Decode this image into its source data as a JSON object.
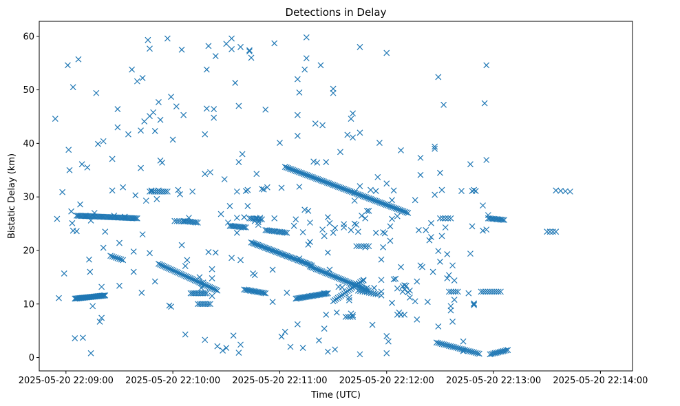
{
  "chart_data": {
    "type": "scatter",
    "title": "Detections in Delay",
    "xlabel": "Time (UTC)",
    "ylabel": "Bistatic Delay (km)",
    "xlim": [
      -15,
      318
    ],
    "ylim": [
      -2.5,
      62.8
    ],
    "marker": "x",
    "color": "#1f77b4",
    "x_ticks": [
      {
        "value": 0,
        "label": "2025-05-20 22:09:00"
      },
      {
        "value": 60,
        "label": "2025-05-20 22:10:00"
      },
      {
        "value": 120,
        "label": "2025-05-20 22:11:00"
      },
      {
        "value": 180,
        "label": "2025-05-20 22:12:00"
      },
      {
        "value": 240,
        "label": "2025-05-20 22:13:00"
      },
      {
        "value": 300,
        "label": "2025-05-20 22:14:00"
      }
    ],
    "y_ticks": [
      0,
      10,
      20,
      30,
      40,
      50,
      60
    ],
    "x_unit_note": "x values are seconds after 2025-05-20 22:09:00 UTC",
    "tracks": [
      {
        "x0": 5,
        "y0": 11.0,
        "x1": 22,
        "y1": 11.6,
        "count": 30
      },
      {
        "x0": 6,
        "y0": 26.5,
        "x1": 40,
        "y1": 26.0,
        "count": 45
      },
      {
        "x0": 25,
        "y0": 19.0,
        "x1": 32,
        "y1": 18.2,
        "count": 8
      },
      {
        "x0": 47,
        "y0": 31.0,
        "x1": 57,
        "y1": 31.0,
        "count": 10
      },
      {
        "x0": 52,
        "y0": 17.5,
        "x1": 85,
        "y1": 12.5,
        "count": 40
      },
      {
        "x0": 70,
        "y0": 12.0,
        "x1": 79,
        "y1": 12.0,
        "count": 10
      },
      {
        "x0": 66,
        "y0": 25.5,
        "x1": 74,
        "y1": 25.2,
        "count": 10
      },
      {
        "x0": 74,
        "y0": 10.0,
        "x1": 81,
        "y1": 10.0,
        "count": 8
      },
      {
        "x0": 92,
        "y0": 24.6,
        "x1": 101,
        "y1": 24.3,
        "count": 12
      },
      {
        "x0": 100,
        "y0": 12.7,
        "x1": 112,
        "y1": 12.0,
        "count": 16
      },
      {
        "x0": 103,
        "y0": 26.0,
        "x1": 110,
        "y1": 25.8,
        "count": 8
      },
      {
        "x0": 104,
        "y0": 21.5,
        "x1": 138,
        "y1": 17.2,
        "count": 45
      },
      {
        "x0": 112,
        "y0": 23.8,
        "x1": 124,
        "y1": 23.3,
        "count": 14
      },
      {
        "x0": 123,
        "y0": 35.6,
        "x1": 192,
        "y1": 27.0,
        "count": 80
      },
      {
        "x0": 129,
        "y0": 11.0,
        "x1": 147,
        "y1": 12.0,
        "count": 25
      },
      {
        "x0": 137,
        "y0": 17.0,
        "x1": 170,
        "y1": 12.5,
        "count": 40
      },
      {
        "x0": 150,
        "y0": 10.5,
        "x1": 167,
        "y1": 14.5,
        "count": 20
      },
      {
        "x0": 164,
        "y0": 12.5,
        "x1": 175,
        "y1": 11.8,
        "count": 10
      },
      {
        "x0": 163,
        "y0": 20.8,
        "x1": 170,
        "y1": 20.8,
        "count": 6
      },
      {
        "x0": 208,
        "y0": 2.8,
        "x1": 232,
        "y1": 0.7,
        "count": 25
      },
      {
        "x0": 238,
        "y0": 0.6,
        "x1": 248,
        "y1": 1.4,
        "count": 12
      },
      {
        "x0": 237,
        "y0": 26.0,
        "x1": 246,
        "y1": 25.7,
        "count": 12
      },
      {
        "x0": 233,
        "y0": 12.3,
        "x1": 244,
        "y1": 12.3,
        "count": 10
      },
      {
        "x0": 215,
        "y0": 12.3,
        "x1": 220,
        "y1": 12.3,
        "count": 5
      },
      {
        "x0": 270,
        "y0": 23.5,
        "x1": 275,
        "y1": 23.5,
        "count": 4
      },
      {
        "x0": 275,
        "y0": 31.2,
        "x1": 283,
        "y1": 31.0,
        "count": 4
      },
      {
        "x0": 210,
        "y0": 26.0,
        "x1": 216,
        "y1": 26.0,
        "count": 5
      },
      {
        "x0": 157,
        "y0": 7.6,
        "x1": 161,
        "y1": 7.6,
        "count": 4
      },
      {
        "x0": 186,
        "y0": 8.0,
        "x1": 190,
        "y1": 8.0,
        "count": 3
      },
      {
        "x0": 61,
        "y0": 25.5,
        "x1": 66,
        "y1": 25.4,
        "count": 5
      }
    ],
    "points": [
      [
        -6,
        44.6
      ],
      [
        -5,
        25.9
      ],
      [
        -4,
        11.1
      ],
      [
        -2,
        30.9
      ],
      [
        -1,
        15.7
      ],
      [
        1,
        54.6
      ],
      [
        1.5,
        38.8
      ],
      [
        2,
        35
      ],
      [
        3,
        27.3
      ],
      [
        3.5,
        25.1
      ],
      [
        4,
        50.5
      ],
      [
        4,
        23.7
      ],
      [
        5,
        3.6
      ],
      [
        6,
        23.6
      ],
      [
        7,
        55.7
      ],
      [
        8,
        28.6
      ],
      [
        9,
        36.1
      ],
      [
        9.5,
        3.7
      ],
      [
        11,
        26.5
      ],
      [
        12,
        35.5
      ],
      [
        13,
        18.3
      ],
      [
        13.5,
        16
      ],
      [
        14,
        25.6
      ],
      [
        14,
        0.8
      ],
      [
        15,
        9.6
      ],
      [
        16,
        27
      ],
      [
        17,
        49.4
      ],
      [
        18,
        39.9
      ],
      [
        19,
        6.7
      ],
      [
        20,
        13.2
      ],
      [
        20,
        7.4
      ],
      [
        21,
        40.4
      ],
      [
        21,
        20.5
      ],
      [
        22,
        23.5
      ],
      [
        26,
        37.1
      ],
      [
        26,
        31.2
      ],
      [
        27,
        26.5
      ],
      [
        29,
        46.4
      ],
      [
        29,
        43
      ],
      [
        30,
        21.4
      ],
      [
        30,
        13.4
      ],
      [
        32,
        31.8
      ],
      [
        33,
        26.3
      ],
      [
        35,
        41.7
      ],
      [
        37,
        53.8
      ],
      [
        38,
        16
      ],
      [
        38,
        19.8
      ],
      [
        39,
        30.3
      ],
      [
        40,
        51.6
      ],
      [
        42,
        42.4
      ],
      [
        42,
        35.4
      ],
      [
        42.5,
        12.1
      ],
      [
        43,
        52.2
      ],
      [
        43,
        23
      ],
      [
        44,
        44.1
      ],
      [
        45,
        29.3
      ],
      [
        46,
        59.3
      ],
      [
        47,
        57.7
      ],
      [
        47,
        45.1
      ],
      [
        47,
        19.5
      ],
      [
        48,
        31.2
      ],
      [
        49,
        45.8
      ],
      [
        50,
        42.3
      ],
      [
        50,
        14.2
      ],
      [
        51,
        29.6
      ],
      [
        52,
        47.7
      ],
      [
        52,
        31.2
      ],
      [
        53,
        44.4
      ],
      [
        53,
        36.8
      ],
      [
        54,
        36.4
      ],
      [
        57,
        59.6
      ],
      [
        58,
        9.7
      ],
      [
        59,
        9.5
      ],
      [
        59,
        48.7
      ],
      [
        60,
        40.7
      ],
      [
        62,
        46.9
      ],
      [
        63,
        31.3
      ],
      [
        64,
        30.5
      ],
      [
        65,
        57.5
      ],
      [
        65,
        21
      ],
      [
        66,
        45.3
      ],
      [
        67,
        17.1
      ],
      [
        67,
        4.3
      ],
      [
        68,
        18.2
      ],
      [
        69,
        26.1
      ],
      [
        71,
        31
      ],
      [
        75,
        15
      ],
      [
        76,
        13
      ],
      [
        77,
        14
      ],
      [
        78,
        41.7
      ],
      [
        78,
        34.3
      ],
      [
        78,
        3.3
      ],
      [
        79,
        53.8
      ],
      [
        79,
        46.5
      ],
      [
        80,
        58.2
      ],
      [
        80,
        19.7
      ],
      [
        81,
        34.6
      ],
      [
        82,
        14.8
      ],
      [
        82,
        11.5
      ],
      [
        82,
        16.5
      ],
      [
        83,
        46.4
      ],
      [
        83,
        44.8
      ],
      [
        84,
        56.3
      ],
      [
        84,
        19.6
      ],
      [
        85,
        2.1
      ],
      [
        87,
        26.8
      ],
      [
        88,
        1.3
      ],
      [
        89,
        33.3
      ],
      [
        90,
        1.8
      ],
      [
        90,
        58.6
      ],
      [
        91,
        25.2
      ],
      [
        92,
        28.3
      ],
      [
        93,
        57.6
      ],
      [
        93,
        59.6
      ],
      [
        93,
        18.6
      ],
      [
        94,
        4.1
      ],
      [
        95,
        51.3
      ],
      [
        96,
        31
      ],
      [
        96,
        26.1
      ],
      [
        96,
        23.3
      ],
      [
        97,
        47
      ],
      [
        97,
        36.5
      ],
      [
        97,
        0.9
      ],
      [
        98,
        58
      ],
      [
        98,
        18.2
      ],
      [
        98,
        2.4
      ],
      [
        99,
        38
      ],
      [
        100,
        26.2
      ],
      [
        101,
        31.1
      ],
      [
        102,
        28.3
      ],
      [
        102,
        31.3
      ],
      [
        103,
        57.4
      ],
      [
        103,
        57.2
      ],
      [
        104,
        56
      ],
      [
        105,
        15.7
      ],
      [
        106,
        25.5
      ],
      [
        106,
        15.4
      ],
      [
        107,
        26
      ],
      [
        107,
        34.3
      ],
      [
        108,
        24.8
      ],
      [
        108,
        25.3
      ],
      [
        109,
        26.1
      ],
      [
        110,
        31.5
      ],
      [
        111,
        31.4
      ],
      [
        112,
        46.3
      ],
      [
        113,
        31.8
      ],
      [
        116,
        16.4
      ],
      [
        116,
        10.4
      ],
      [
        117,
        58.7
      ],
      [
        117,
        26
      ],
      [
        120,
        40.1
      ],
      [
        121,
        3.9
      ],
      [
        121,
        31.7
      ],
      [
        123,
        4.8
      ],
      [
        124,
        12.1
      ],
      [
        126,
        2
      ],
      [
        128,
        24.6
      ],
      [
        129,
        25.8
      ],
      [
        130,
        45.3
      ],
      [
        130,
        41.4
      ],
      [
        130,
        52
      ],
      [
        130,
        6.2
      ],
      [
        131,
        49.5
      ],
      [
        131,
        31.9
      ],
      [
        131,
        18.5
      ],
      [
        133,
        23.4
      ],
      [
        133,
        1.8
      ],
      [
        134,
        53.8
      ],
      [
        134,
        27.6
      ],
      [
        135,
        55.9
      ],
      [
        135,
        59.8
      ],
      [
        136,
        27.4
      ],
      [
        136,
        21.1
      ],
      [
        137,
        25.2
      ],
      [
        137,
        21.6
      ],
      [
        139,
        36.6
      ],
      [
        140,
        43.7
      ],
      [
        141,
        36.4
      ],
      [
        142,
        3.2
      ],
      [
        143,
        54.6
      ],
      [
        144,
        43.4
      ],
      [
        144,
        23.9
      ],
      [
        145,
        12
      ],
      [
        145,
        22.7
      ],
      [
        145,
        5.4
      ],
      [
        146,
        36.5
      ],
      [
        146,
        8
      ],
      [
        147,
        26.2
      ],
      [
        147,
        19.6
      ],
      [
        147,
        1.1
      ],
      [
        148,
        25.1
      ],
      [
        148,
        16.4
      ],
      [
        150,
        23.3
      ],
      [
        150,
        49.4
      ],
      [
        150,
        50.2
      ],
      [
        151,
        1.5
      ],
      [
        151,
        24.2
      ],
      [
        152,
        8.4
      ],
      [
        153,
        13.2
      ],
      [
        154,
        38.4
      ],
      [
        155,
        13.1
      ],
      [
        156,
        24.9
      ],
      [
        156,
        24.3
      ],
      [
        158,
        41.6
      ],
      [
        159,
        11.2
      ],
      [
        159,
        10.7
      ],
      [
        160,
        44.6
      ],
      [
        160,
        8.2
      ],
      [
        160,
        23.8
      ],
      [
        161,
        41.1
      ],
      [
        161,
        45.6
      ],
      [
        161,
        7.9
      ],
      [
        162,
        29.3
      ],
      [
        162,
        25
      ],
      [
        162,
        30.9
      ],
      [
        163,
        24.8
      ],
      [
        164,
        23.5
      ],
      [
        165,
        32
      ],
      [
        165,
        58
      ],
      [
        165,
        42
      ],
      [
        165,
        0.6
      ],
      [
        165,
        12.8
      ],
      [
        166,
        13.1
      ],
      [
        166,
        26.5
      ],
      [
        167,
        14.4
      ],
      [
        168,
        26
      ],
      [
        168,
        20.6
      ],
      [
        169,
        13
      ],
      [
        169,
        27.4
      ],
      [
        170,
        27.4
      ],
      [
        171,
        31.3
      ],
      [
        172,
        6.1
      ],
      [
        173,
        13
      ],
      [
        174,
        31.1
      ],
      [
        174,
        23.3
      ],
      [
        175,
        33.7
      ],
      [
        176,
        40.1
      ],
      [
        177,
        18.3
      ],
      [
        177,
        14.5
      ],
      [
        177,
        12.3
      ],
      [
        177,
        11.6
      ],
      [
        178,
        20.6
      ],
      [
        178,
        23.4
      ],
      [
        179,
        23.2
      ],
      [
        180,
        0.8
      ],
      [
        180,
        32.5
      ],
      [
        180,
        4
      ],
      [
        180,
        56.9
      ],
      [
        181,
        3
      ],
      [
        182,
        21.8
      ],
      [
        182,
        24.5
      ],
      [
        183,
        25.9
      ],
      [
        183,
        29.4
      ],
      [
        183,
        10.2
      ],
      [
        184,
        31.2
      ],
      [
        184,
        14.6
      ],
      [
        185,
        14.7
      ],
      [
        186,
        26.4
      ],
      [
        186,
        12.9
      ],
      [
        187,
        8.4
      ],
      [
        188,
        38.7
      ],
      [
        188,
        16.9
      ],
      [
        189,
        12.3
      ],
      [
        189,
        13.3
      ],
      [
        190,
        13.5
      ],
      [
        190,
        12.7
      ],
      [
        191,
        13.4
      ],
      [
        192,
        12.2
      ],
      [
        193,
        12.5
      ],
      [
        193,
        11.2
      ],
      [
        196,
        29.4
      ],
      [
        196,
        10.5
      ],
      [
        197,
        7.1
      ],
      [
        197,
        14.2
      ],
      [
        198,
        23.8
      ],
      [
        199,
        17.2
      ],
      [
        199,
        34.1
      ],
      [
        199,
        37.3
      ],
      [
        200,
        16.9
      ],
      [
        202,
        23.8
      ],
      [
        203,
        10.4
      ],
      [
        204,
        21.9
      ],
      [
        205,
        22.5
      ],
      [
        205,
        25.1
      ],
      [
        206,
        16
      ],
      [
        207,
        30.4
      ],
      [
        207,
        39.4
      ],
      [
        207,
        39
      ],
      [
        209,
        19.9
      ],
      [
        209,
        52.4
      ],
      [
        209,
        5.8
      ],
      [
        210,
        34.5
      ],
      [
        210,
        17.9
      ],
      [
        211,
        22.7
      ],
      [
        211,
        31.3
      ],
      [
        212,
        47.2
      ],
      [
        213,
        24.3
      ],
      [
        214,
        19.3
      ],
      [
        214,
        14.8
      ],
      [
        215,
        15.4
      ],
      [
        216,
        8.8
      ],
      [
        216,
        9.6
      ],
      [
        217,
        6.7
      ],
      [
        217,
        17.2
      ],
      [
        218,
        14.4
      ],
      [
        218,
        10.8
      ],
      [
        222,
        31.1
      ],
      [
        223,
        3
      ],
      [
        223,
        1.2
      ],
      [
        226,
        12
      ],
      [
        227,
        36.1
      ],
      [
        227,
        19.4
      ],
      [
        228,
        31.1
      ],
      [
        228,
        24.5
      ],
      [
        229,
        31.3
      ],
      [
        229,
        10
      ],
      [
        229,
        9.8
      ],
      [
        229,
        10.1
      ],
      [
        230,
        31.1
      ],
      [
        234,
        28.4
      ],
      [
        234,
        23.7
      ],
      [
        235,
        47.5
      ],
      [
        236,
        23.9
      ],
      [
        236,
        36.9
      ],
      [
        236,
        54.6
      ],
      [
        237,
        26.6
      ]
    ]
  }
}
